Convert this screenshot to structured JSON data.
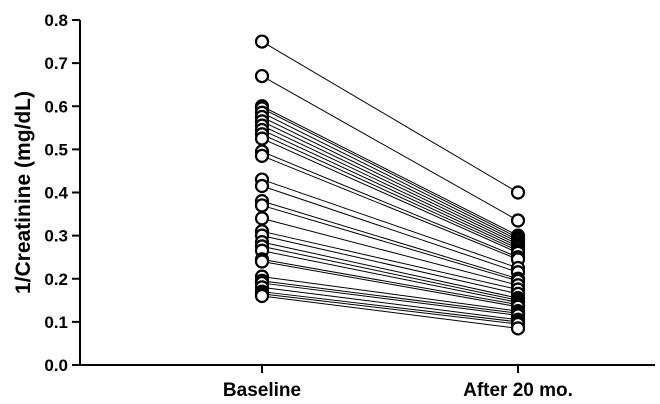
{
  "chart_data": {
    "type": "line",
    "categories": [
      "Baseline",
      "After 20 mo."
    ],
    "ylabel": "1/Creatinine (mg/dL)",
    "xlabel": "",
    "ylim": [
      0.0,
      0.8
    ],
    "yticks": [
      "0.0",
      "0.1",
      "0.2",
      "0.3",
      "0.4",
      "0.5",
      "0.6",
      "0.7",
      "0.8"
    ],
    "grid": false,
    "legend": "none",
    "marker": "open-circle",
    "colors": {
      "line": "#000000",
      "marker_fill": "#ffffff",
      "marker_stroke": "#000000"
    },
    "pairs": [
      [
        0.75,
        0.4
      ],
      [
        0.67,
        0.335
      ],
      [
        0.6,
        0.3
      ],
      [
        0.595,
        0.295
      ],
      [
        0.585,
        0.29
      ],
      [
        0.575,
        0.285
      ],
      [
        0.565,
        0.28
      ],
      [
        0.555,
        0.275
      ],
      [
        0.545,
        0.27
      ],
      [
        0.535,
        0.265
      ],
      [
        0.525,
        0.26
      ],
      [
        0.495,
        0.25
      ],
      [
        0.485,
        0.245
      ],
      [
        0.43,
        0.225
      ],
      [
        0.415,
        0.215
      ],
      [
        0.38,
        0.2
      ],
      [
        0.37,
        0.195
      ],
      [
        0.34,
        0.185
      ],
      [
        0.31,
        0.175
      ],
      [
        0.3,
        0.165
      ],
      [
        0.285,
        0.155
      ],
      [
        0.275,
        0.15
      ],
      [
        0.265,
        0.145
      ],
      [
        0.245,
        0.14
      ],
      [
        0.24,
        0.135
      ],
      [
        0.205,
        0.125
      ],
      [
        0.195,
        0.12
      ],
      [
        0.19,
        0.115
      ],
      [
        0.18,
        0.105
      ],
      [
        0.17,
        0.1
      ],
      [
        0.165,
        0.095
      ],
      [
        0.16,
        0.085
      ]
    ]
  }
}
